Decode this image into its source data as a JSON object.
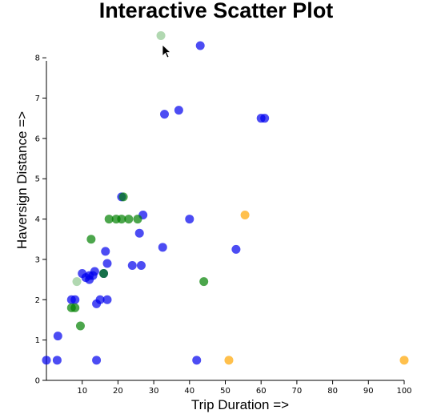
{
  "chart_data": {
    "type": "scatter",
    "title": "Interactive Scatter Plot",
    "xlabel": "Trip Duration =>",
    "ylabel": "Haversign Distance =>",
    "xlim": [
      0,
      100
    ],
    "ylim": [
      0,
      8.4
    ],
    "x_ticks": [
      10,
      20,
      30,
      40,
      50,
      60,
      70,
      80,
      90,
      100
    ],
    "y_ticks": [
      0,
      1,
      2,
      3,
      4,
      5,
      6,
      7,
      8
    ],
    "grid": false,
    "legend": "none",
    "colors": {
      "blue": "#0000ee",
      "green": "#008000",
      "orange": "#ffa500",
      "lightgreen": "#90c890"
    },
    "series": [
      {
        "color": "blue",
        "points": [
          [
            0,
            0.5
          ],
          [
            3,
            0.5
          ],
          [
            3.2,
            1.1
          ],
          [
            7,
            2.0
          ],
          [
            8,
            2.0
          ],
          [
            10,
            2.65
          ],
          [
            11,
            2.55
          ],
          [
            12,
            2.6
          ],
          [
            12,
            2.5
          ],
          [
            13,
            2.6
          ],
          [
            13.5,
            2.7
          ],
          [
            14,
            1.9
          ],
          [
            14,
            0.5
          ],
          [
            15,
            2.0
          ],
          [
            16,
            2.65
          ],
          [
            16.5,
            3.2
          ],
          [
            17,
            2.9
          ],
          [
            17,
            2.0
          ],
          [
            21,
            4.55
          ],
          [
            24,
            2.85
          ],
          [
            26,
            3.65
          ],
          [
            26.5,
            2.85
          ],
          [
            27,
            4.1
          ],
          [
            32.5,
            3.3
          ],
          [
            33,
            6.6
          ],
          [
            37,
            6.7
          ],
          [
            40,
            4.0
          ],
          [
            42,
            0.5
          ],
          [
            43,
            8.3
          ],
          [
            53,
            3.25
          ],
          [
            60,
            6.5
          ],
          [
            61,
            6.5
          ]
        ]
      },
      {
        "color": "green",
        "points": [
          [
            7,
            1.8
          ],
          [
            8,
            1.8
          ],
          [
            9.5,
            1.35
          ],
          [
            12.5,
            3.5
          ],
          [
            16,
            2.65
          ],
          [
            17.5,
            4.0
          ],
          [
            19.5,
            4.0
          ],
          [
            21,
            4.0
          ],
          [
            21.5,
            4.55
          ],
          [
            23,
            4.0
          ],
          [
            25.5,
            4.0
          ],
          [
            44,
            2.45
          ]
        ]
      },
      {
        "color": "orange",
        "points": [
          [
            51,
            0.5
          ],
          [
            55.5,
            4.1
          ],
          [
            100,
            0.5
          ]
        ]
      },
      {
        "color": "lightgreen",
        "points": [
          [
            8.5,
            2.45
          ],
          [
            32,
            8.55
          ]
        ]
      }
    ]
  }
}
